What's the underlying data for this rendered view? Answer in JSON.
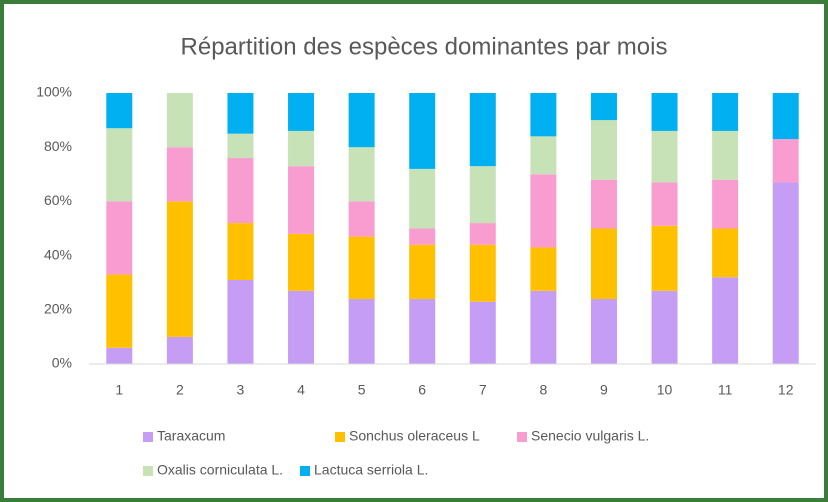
{
  "chart_data": {
    "type": "stacked_bar",
    "title": "Répartition des espèces dominantes par mois",
    "categories": [
      "1",
      "2",
      "3",
      "4",
      "5",
      "6",
      "7",
      "8",
      "9",
      "10",
      "11",
      "12"
    ],
    "series": [
      {
        "name": "Taraxacum",
        "color": "#c59df5",
        "values": [
          6,
          10,
          31,
          27,
          24,
          24,
          23,
          27,
          24,
          27,
          32,
          67
        ]
      },
      {
        "name": "Sonchus oleraceus L",
        "color": "#ffc000",
        "values": [
          27,
          50,
          21,
          21,
          23,
          20,
          21,
          16,
          26,
          24,
          18,
          0
        ]
      },
      {
        "name": "Senecio vulgaris L.",
        "color": "#f99dd0",
        "values": [
          27,
          20,
          24,
          25,
          13,
          6,
          8,
          27,
          18,
          16,
          18,
          16
        ]
      },
      {
        "name": "Oxalis corniculata L.",
        "color": "#c7e2b6",
        "values": [
          27,
          20,
          9,
          13,
          20,
          22,
          21,
          14,
          22,
          19,
          18,
          0
        ]
      },
      {
        "name": "Lactuca serriola L.",
        "color": "#00b0f0",
        "values": [
          13,
          0,
          15,
          14,
          20,
          28,
          27,
          16,
          10,
          14,
          14,
          17
        ]
      }
    ],
    "ylim": [
      0,
      100
    ],
    "yticks": [
      {
        "value": 0,
        "label": "0%"
      },
      {
        "value": 20,
        "label": "20%"
      },
      {
        "value": 40,
        "label": "40%"
      },
      {
        "value": 60,
        "label": "60%"
      },
      {
        "value": 80,
        "label": "80%"
      },
      {
        "value": 100,
        "label": "100%"
      }
    ],
    "grid": false
  }
}
